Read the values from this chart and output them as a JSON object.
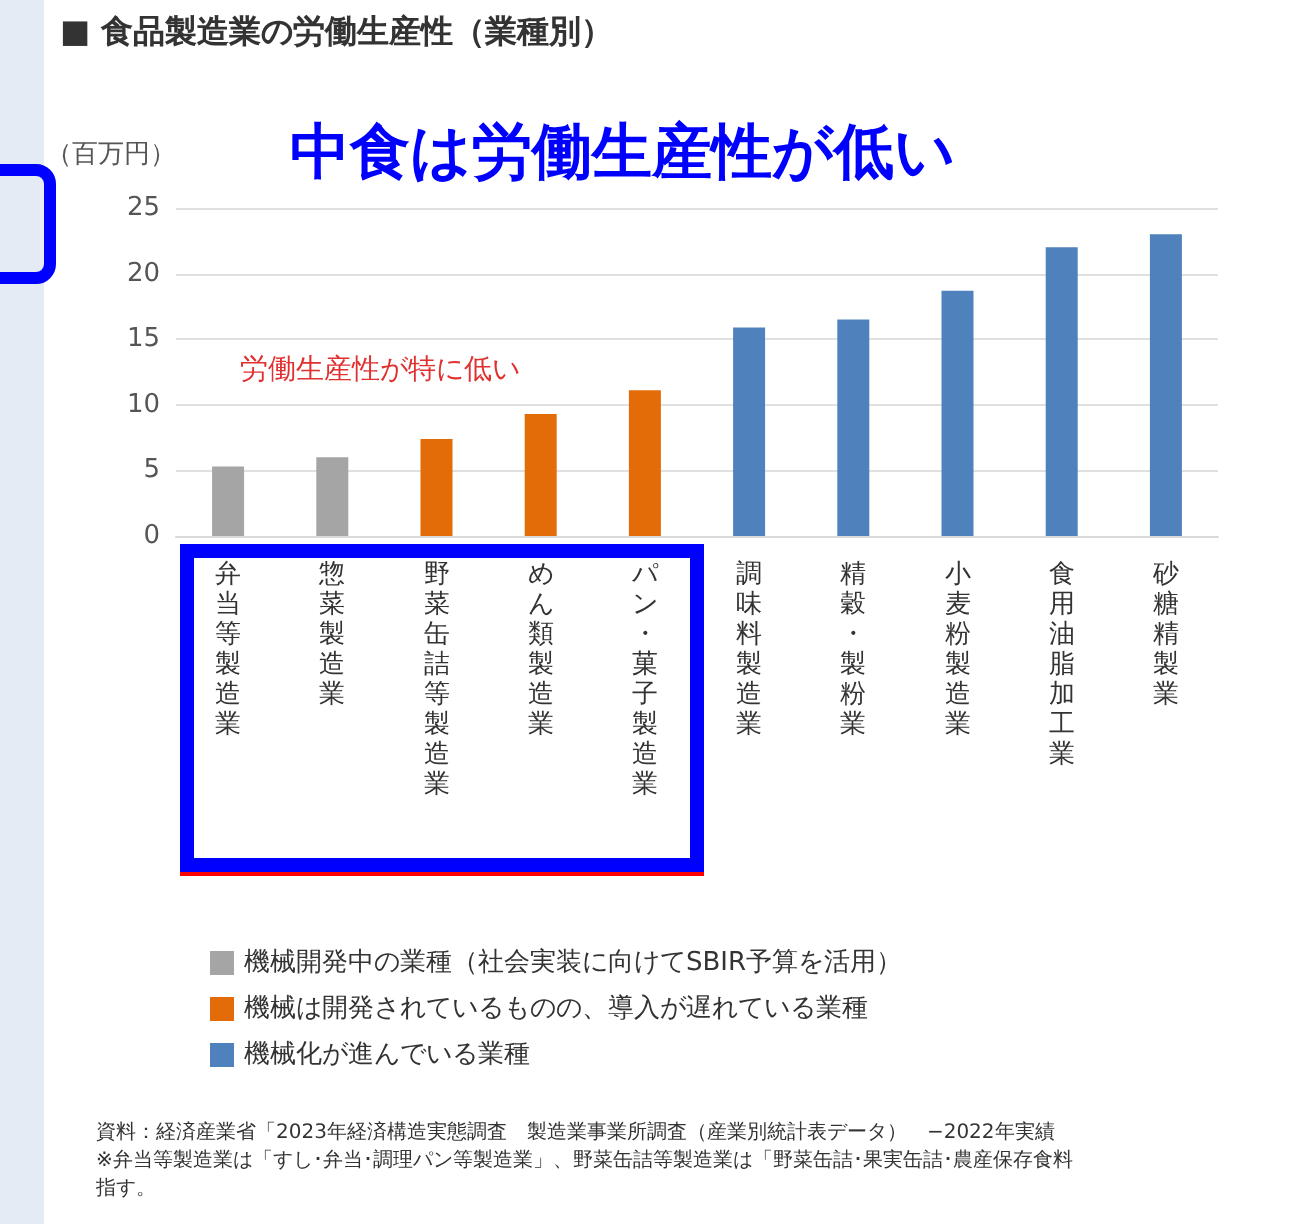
{
  "chart_data": {
    "type": "bar",
    "title": "■  食品製造業の労働生産性（業種別）",
    "ylabel": "（百万円）",
    "categories": [
      "弁当等製造業",
      "惣菜製造業",
      "野菜缶詰等製造業",
      "めん類製造業",
      "パン・菓子製造業",
      "調味料製造業",
      "精穀・製粉業",
      "小麦粉製造業",
      "食用油脂加工業",
      "砂糖精製業"
    ],
    "series": [
      {
        "name": "機械開発中の業種（社会実装に向けてSBIR予算を活用）",
        "color": "#a5a5a5",
        "values": [
          5.3,
          6.0,
          null,
          null,
          null,
          null,
          null,
          null,
          null,
          null
        ]
      },
      {
        "name": "機械は開発されているものの、導入が遅れている業種",
        "color": "#e36c09",
        "values": [
          null,
          null,
          7.4,
          9.3,
          11.1,
          null,
          null,
          null,
          null,
          null
        ]
      },
      {
        "name": "機械化が進んでいる業種",
        "color": "#4f81bd",
        "values": [
          null,
          null,
          null,
          null,
          null,
          15.9,
          16.5,
          18.7,
          22.0,
          23.0
        ]
      }
    ],
    "ylim": [
      0,
      25
    ],
    "yticks": [
      0,
      5,
      10,
      15,
      20,
      25
    ],
    "grid": "y",
    "legend": "bottom",
    "annotations": [
      "中食は労働生産性が低い",
      "労働生産性が特に低い",
      "資料：経済産業省「2023年経済構造実態調査　製造業事業所調査（産業別統計表データ）　−2022年実績",
      "※弁当等製造業は「すし･弁当･調理パン等製造業」、野菜缶詰等製造業は「野菜缶詰･果実缶詰･農産保存食料",
      "指す。"
    ]
  }
}
